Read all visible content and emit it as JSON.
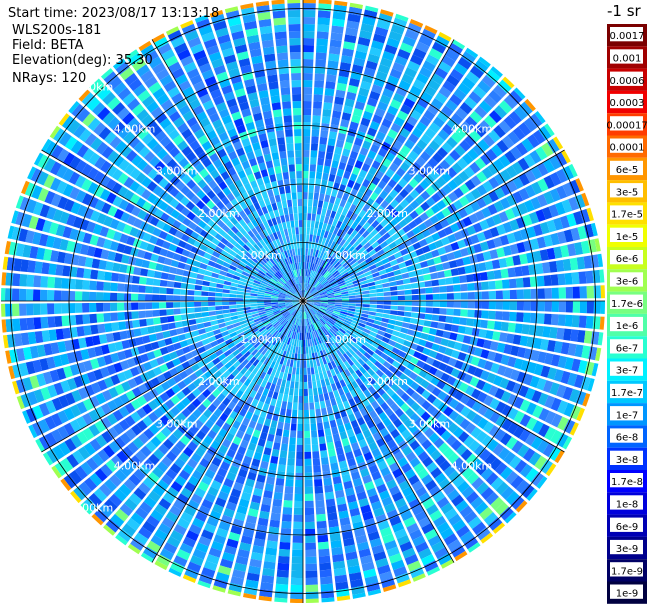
{
  "header": {
    "start_time": "Start time: 2023/08/17 13:13:18",
    "instrument": "WLS200s-181",
    "field": "Field: BETA",
    "elevation": "Elevation(deg): 35.30",
    "nrays": "NRays: 120"
  },
  "chart_data": {
    "type": "heatmap",
    "projection": "polar (PPI scan)",
    "field": "BETA",
    "n_rays": 120,
    "elevation_deg": 35.3,
    "range_rings_km": [
      1,
      2,
      3,
      4,
      5
    ],
    "range_labels": [
      "1.00km",
      "2.00km",
      "3.00km",
      "4.00km",
      "5.00km"
    ],
    "azimuth_spokes_deg": [
      0,
      30,
      60,
      90,
      120,
      150,
      180,
      210,
      240,
      270,
      300,
      330
    ],
    "colorbar": {
      "unit_label": "-1 sr",
      "scale": "log",
      "ticks": [
        "0.0017",
        "0.001",
        "0.0006",
        "0.0003",
        "0.00017",
        "0.0001",
        "6e-5",
        "3e-5",
        "1.7e-5",
        "1e-5",
        "6e-6",
        "3e-6",
        "1.7e-6",
        "1e-6",
        "6e-7",
        "3e-7",
        "1.7e-7",
        "1e-7",
        "6e-8",
        "3e-8",
        "1.7e-8",
        "1e-8",
        "6e-9",
        "3e-9",
        "1.7e-9",
        "1e-9"
      ],
      "colors": [
        "#7a0000",
        "#a00000",
        "#c80000",
        "#f00000",
        "#ff3c00",
        "#ff6a00",
        "#ff9600",
        "#ffbe00",
        "#ffe000",
        "#f0ff00",
        "#c8ff1e",
        "#a0ff50",
        "#78ff80",
        "#50ffa8",
        "#28ffd2",
        "#00f0ff",
        "#00c8ff",
        "#0096ff",
        "#0064ff",
        "#0032ff",
        "#0000ff",
        "#0000dc",
        "#0000b4",
        "#00008c",
        "#000064",
        "#000040"
      ]
    },
    "dominant_values": "mostly 1e-8 to 3e-7 (blue-cyan), with higher 1e-6 to 3e-5 (green-yellow-orange) values at the far-range edge"
  }
}
